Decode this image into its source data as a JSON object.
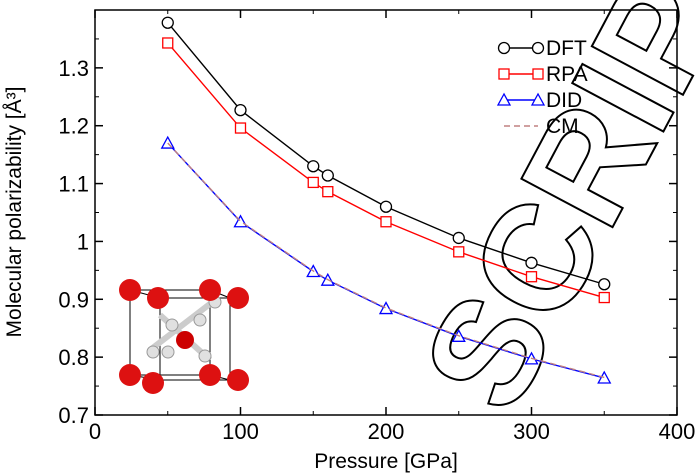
{
  "chart_data": {
    "type": "line",
    "xlabel": "Pressure [GPa]",
    "ylabel": "Molecular polarizability [Å³]",
    "xlim": [
      0,
      400
    ],
    "ylim": [
      0.7,
      1.4
    ],
    "xticks": [
      0,
      100,
      200,
      300,
      400
    ],
    "yticks": [
      0.7,
      0.8,
      0.9,
      1.0,
      1.1,
      1.2,
      1.3
    ],
    "ytick_labels": [
      "0.7",
      "0.8",
      "0.9",
      "1",
      "1.1",
      "1.2",
      "1.3"
    ],
    "xtick_labels": [
      "0",
      "100",
      "200",
      "300",
      "400"
    ],
    "x": [
      50,
      100,
      150,
      160,
      200,
      250,
      300,
      350
    ],
    "series": [
      {
        "name": "DFT",
        "color": "#000000",
        "marker": "circle",
        "values": [
          1.378,
          1.227,
          1.13,
          1.114,
          1.06,
          1.006,
          0.963,
          0.926
        ]
      },
      {
        "name": "RPA",
        "color": "#ff0000",
        "marker": "square",
        "values": [
          1.343,
          1.196,
          1.102,
          1.086,
          1.034,
          0.982,
          0.939,
          0.903
        ]
      },
      {
        "name": "DID",
        "color": "#0000ff",
        "marker": "triangle",
        "values": [
          1.17,
          1.034,
          0.948,
          0.933,
          0.884,
          0.836,
          0.797,
          0.764
        ]
      },
      {
        "name": "CM",
        "color": "#c08080",
        "marker": "none",
        "dashed": true,
        "values": [
          1.17,
          1.035,
          0.949,
          0.934,
          0.885,
          0.837,
          0.798,
          0.765
        ]
      }
    ],
    "legend_position": "top-right",
    "grid": false,
    "inset": "molecular crystal structure (red and white spheres in a cubic cell)",
    "watermark": "SCRIPT"
  }
}
